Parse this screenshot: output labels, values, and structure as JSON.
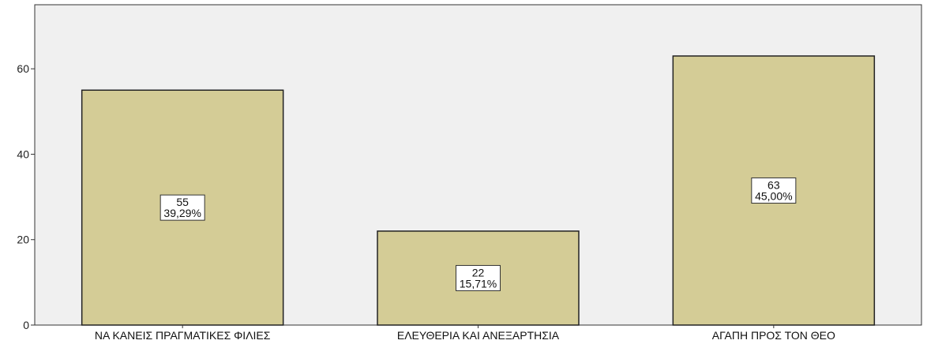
{
  "chart_data": {
    "type": "bar",
    "title": "",
    "xlabel": "",
    "ylabel": "",
    "categories": [
      "ΝΑ ΚΑΝΕΙΣ ΠΡΑΓΜΑΤΙΚΕΣ ΦΙΛΙΕΣ",
      "ΕΛΕΥΘΕΡΙΑ ΚΑΙ ΑΝΕΞΑΡΤΗΣΙΑ",
      "ΑΓΑΠΗ ΠΡΟΣ ΤΟΝ ΘΕΟ"
    ],
    "values": [
      55,
      22,
      63
    ],
    "percent_labels": [
      "39,29%",
      "15,71%",
      "45,00%"
    ],
    "ylim": [
      0,
      75
    ],
    "yticks": [
      0,
      20,
      40,
      60
    ],
    "grid": false,
    "legend": "none",
    "colors": {
      "bar_fill": "#d4cc96",
      "bar_stroke": "#222222",
      "plot_background": "#f0f0f0",
      "axis": "#333333"
    }
  }
}
